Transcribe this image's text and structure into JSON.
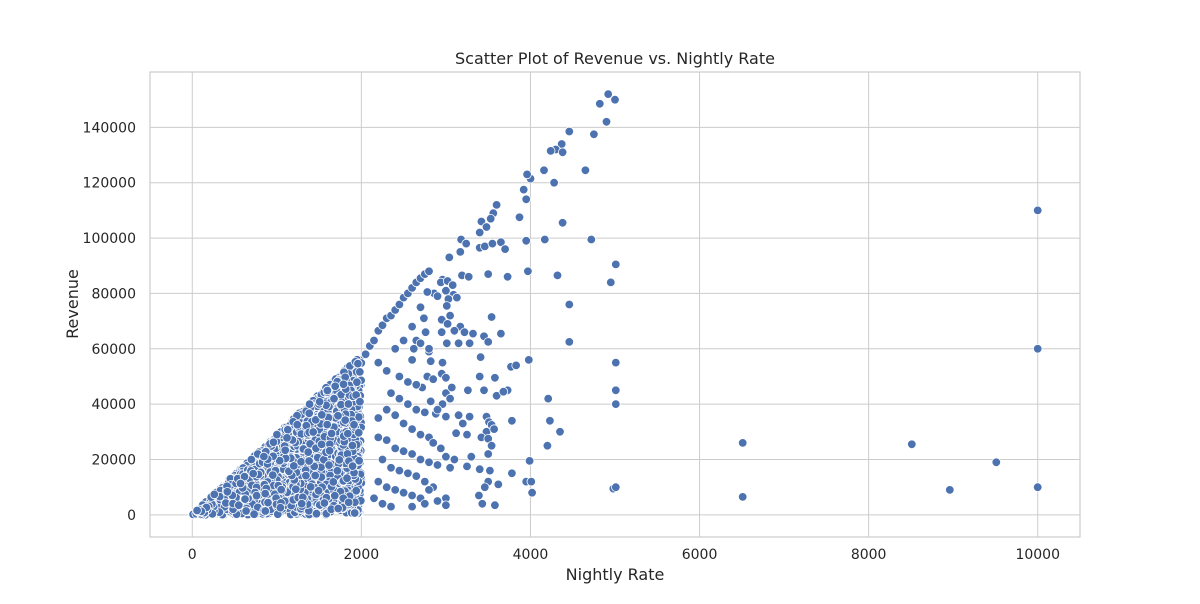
{
  "chart_data": {
    "type": "scatter",
    "title": "Scatter Plot of Revenue vs. Nightly Rate",
    "xlabel": "Nightly Rate",
    "ylabel": "Revenue",
    "xlim": [
      -500,
      10500
    ],
    "ylim": [
      -8000,
      160000
    ],
    "xticks": [
      0,
      2000,
      4000,
      6000,
      8000,
      10000
    ],
    "yticks": [
      0,
      20000,
      40000,
      60000,
      80000,
      100000,
      120000,
      140000
    ],
    "grid": true,
    "point_color": "#4C72B0",
    "point_edge_color": "#ffffff",
    "background_color": "#ffffff",
    "grid_color": "#cccccc",
    "dense_region": {
      "description_note": "",
      "x_range": [
        0,
        2000
      ],
      "revenue_max_ratio": 29
    },
    "points": [
      [
        4920,
        152000
      ],
      [
        4820,
        148500
      ],
      [
        5000,
        150000
      ],
      [
        4900,
        142000
      ],
      [
        4750,
        137500
      ],
      [
        4460,
        138500
      ],
      [
        4370,
        134000
      ],
      [
        4300,
        132000
      ],
      [
        4240,
        131500
      ],
      [
        4380,
        131000
      ],
      [
        4160,
        124500
      ],
      [
        4650,
        124500
      ],
      [
        4000,
        121500
      ],
      [
        3960,
        123000
      ],
      [
        4280,
        120000
      ],
      [
        3920,
        117500
      ],
      [
        3950,
        114000
      ],
      [
        3600,
        112000
      ],
      [
        3560,
        109000
      ],
      [
        3530,
        107000
      ],
      [
        3870,
        107500
      ],
      [
        4380,
        105500
      ],
      [
        3420,
        106000
      ],
      [
        3480,
        104000
      ],
      [
        3400,
        102000
      ],
      [
        3180,
        99500
      ],
      [
        3240,
        98000
      ],
      [
        3650,
        98500
      ],
      [
        3950,
        99000
      ],
      [
        4170,
        99500
      ],
      [
        4720,
        99500
      ],
      [
        3400,
        96500
      ],
      [
        3460,
        97000
      ],
      [
        3550,
        98000
      ],
      [
        3700,
        96000
      ],
      [
        3170,
        95000
      ],
      [
        3040,
        93000
      ],
      [
        2960,
        85000
      ],
      [
        2940,
        84000
      ],
      [
        3020,
        84500
      ],
      [
        3080,
        83000
      ],
      [
        3190,
        86500
      ],
      [
        3270,
        86000
      ],
      [
        3500,
        87000
      ],
      [
        3730,
        86000
      ],
      [
        3970,
        88000
      ],
      [
        4320,
        86500
      ],
      [
        5010,
        90500
      ],
      [
        4950,
        84000
      ],
      [
        2860,
        80000
      ],
      [
        2900,
        79000
      ],
      [
        3090,
        79500
      ],
      [
        3000,
        81000
      ],
      [
        3030,
        78000
      ],
      [
        3130,
        78500
      ],
      [
        2780,
        80500
      ],
      [
        2700,
        75000
      ],
      [
        3010,
        75500
      ],
      [
        2740,
        71000
      ],
      [
        2950,
        70500
      ],
      [
        3050,
        72000
      ],
      [
        3170,
        68000
      ],
      [
        3220,
        66000
      ],
      [
        3320,
        65500
      ],
      [
        3450,
        64500
      ],
      [
        3540,
        71500
      ],
      [
        3650,
        65500
      ],
      [
        4460,
        76000
      ],
      [
        3020,
        69000
      ],
      [
        3100,
        66500
      ],
      [
        2950,
        66000
      ],
      [
        2760,
        66000
      ],
      [
        2650,
        63000
      ],
      [
        3010,
        62000
      ],
      [
        3150,
        62000
      ],
      [
        3280,
        62000
      ],
      [
        3500,
        62500
      ],
      [
        4460,
        62500
      ],
      [
        2620,
        60000
      ],
      [
        2800,
        59000
      ],
      [
        2600,
        56000
      ],
      [
        2820,
        55500
      ],
      [
        2960,
        55000
      ],
      [
        2950,
        51000
      ],
      [
        3000,
        49500
      ],
      [
        3410,
        57000
      ],
      [
        3400,
        50000
      ],
      [
        3580,
        49500
      ],
      [
        3770,
        53500
      ],
      [
        3830,
        54000
      ],
      [
        3980,
        56000
      ],
      [
        5010,
        55000
      ],
      [
        2780,
        50000
      ],
      [
        2720,
        46000
      ],
      [
        2850,
        49000
      ],
      [
        3000,
        44000
      ],
      [
        3070,
        46000
      ],
      [
        3260,
        45000
      ],
      [
        3450,
        45000
      ],
      [
        3600,
        43000
      ],
      [
        3730,
        45000
      ],
      [
        3680,
        44500
      ],
      [
        4210,
        42000
      ],
      [
        5010,
        45000
      ],
      [
        5010,
        40000
      ],
      [
        2820,
        41000
      ],
      [
        2960,
        40000
      ],
      [
        3050,
        42000
      ],
      [
        2880,
        36500
      ],
      [
        2900,
        38000
      ],
      [
        3000,
        35500
      ],
      [
        3150,
        36000
      ],
      [
        3280,
        35500
      ],
      [
        3480,
        35500
      ],
      [
        3510,
        33500
      ],
      [
        3780,
        34000
      ],
      [
        4230,
        34000
      ],
      [
        3200,
        33000
      ],
      [
        3480,
        30000
      ],
      [
        3540,
        32500
      ],
      [
        3570,
        31000
      ],
      [
        3120,
        29500
      ],
      [
        3250,
        29000
      ],
      [
        3420,
        28000
      ],
      [
        3500,
        27500
      ],
      [
        3540,
        25000
      ],
      [
        4200,
        25000
      ],
      [
        4350,
        30000
      ],
      [
        2940,
        24000
      ],
      [
        3000,
        21000
      ],
      [
        3100,
        20000
      ],
      [
        3300,
        21000
      ],
      [
        3500,
        22000
      ],
      [
        3050,
        17000
      ],
      [
        3250,
        17500
      ],
      [
        3400,
        16500
      ],
      [
        3520,
        16000
      ],
      [
        3780,
        15000
      ],
      [
        3990,
        19500
      ],
      [
        3950,
        12000
      ],
      [
        4010,
        12000
      ],
      [
        3500,
        12000
      ],
      [
        3620,
        11000
      ],
      [
        3460,
        10000
      ],
      [
        3000,
        6000
      ],
      [
        3000,
        3500
      ],
      [
        3390,
        7000
      ],
      [
        3430,
        4000
      ],
      [
        3580,
        3500
      ],
      [
        4020,
        8000
      ],
      [
        4980,
        9500
      ],
      [
        5010,
        10000
      ],
      [
        6510,
        26000
      ],
      [
        6510,
        6500
      ],
      [
        8510,
        25500
      ],
      [
        8960,
        9000
      ],
      [
        9510,
        19000
      ],
      [
        10000,
        110000
      ],
      [
        10000,
        60000
      ],
      [
        10000,
        10000
      ],
      [
        2100,
        61000
      ],
      [
        2150,
        63000
      ],
      [
        2200,
        66500
      ],
      [
        2250,
        68500
      ],
      [
        2300,
        71000
      ],
      [
        2350,
        72000
      ],
      [
        2400,
        74000
      ],
      [
        2450,
        76000
      ],
      [
        2500,
        78500
      ],
      [
        2550,
        80000
      ],
      [
        2600,
        82000
      ],
      [
        2650,
        84000
      ],
      [
        2700,
        85500
      ],
      [
        2750,
        87000
      ],
      [
        2800,
        88000
      ],
      [
        2050,
        58000
      ],
      [
        2200,
        55000
      ],
      [
        2300,
        52000
      ],
      [
        2400,
        60000
      ],
      [
        2500,
        63000
      ],
      [
        2600,
        68000
      ],
      [
        2700,
        62000
      ],
      [
        2800,
        60000
      ],
      [
        2450,
        50000
      ],
      [
        2550,
        48000
      ],
      [
        2650,
        47000
      ],
      [
        2350,
        44000
      ],
      [
        2450,
        42000
      ],
      [
        2550,
        40000
      ],
      [
        2650,
        38000
      ],
      [
        2750,
        37000
      ],
      [
        2300,
        38000
      ],
      [
        2200,
        35000
      ],
      [
        2400,
        36000
      ],
      [
        2500,
        33000
      ],
      [
        2600,
        31000
      ],
      [
        2700,
        29000
      ],
      [
        2800,
        28000
      ],
      [
        2850,
        26000
      ],
      [
        2200,
        28000
      ],
      [
        2300,
        27000
      ],
      [
        2400,
        24000
      ],
      [
        2500,
        23000
      ],
      [
        2600,
        22000
      ],
      [
        2700,
        20000
      ],
      [
        2800,
        19000
      ],
      [
        2900,
        18000
      ],
      [
        2250,
        20000
      ],
      [
        2350,
        17000
      ],
      [
        2450,
        16000
      ],
      [
        2550,
        15000
      ],
      [
        2650,
        14000
      ],
      [
        2750,
        12000
      ],
      [
        2850,
        10000
      ],
      [
        2200,
        12000
      ],
      [
        2300,
        10000
      ],
      [
        2400,
        9000
      ],
      [
        2500,
        8000
      ],
      [
        2600,
        7000
      ],
      [
        2700,
        6000
      ],
      [
        2800,
        9000
      ],
      [
        2900,
        5000
      ],
      [
        2150,
        6000
      ],
      [
        2250,
        4000
      ],
      [
        2350,
        3000
      ],
      [
        2600,
        3000
      ],
      [
        2750,
        4000
      ]
    ]
  }
}
